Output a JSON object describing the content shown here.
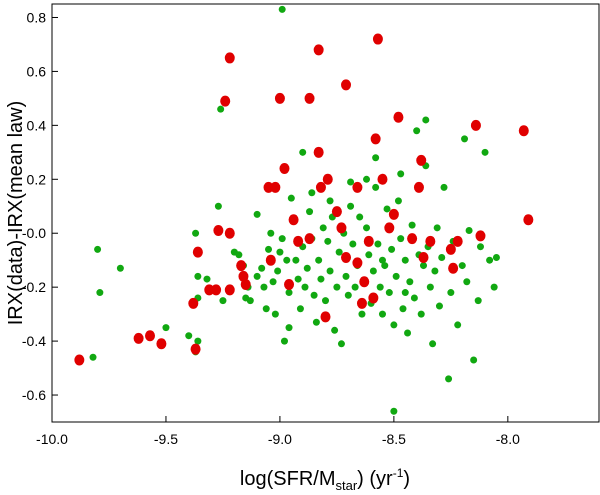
{
  "chart_data": {
    "type": "scatter",
    "title": "",
    "xlabel": {
      "main": "log(SFR/M",
      "sub": "star",
      "tail": ") (yr",
      "sup": "-1",
      "end": ")"
    },
    "ylabel": "IRX(data)-IRX(mean law)",
    "xlim": [
      -10.0,
      -7.6
    ],
    "ylim": [
      -0.7,
      0.85
    ],
    "xticks": [
      -10.0,
      -9.5,
      -9.0,
      -8.5,
      -8.0
    ],
    "xtick_labels": [
      "-10.0",
      "-9.5",
      "-9.0",
      "-8.5",
      "-8.0"
    ],
    "yticks": [
      -0.6,
      -0.4,
      -0.2,
      -0.0,
      0.2,
      0.4,
      0.6,
      0.8
    ],
    "ytick_labels": [
      "-0.6",
      "-0.4",
      "-0.2",
      "-0.0",
      "0.2",
      "0.4",
      "0.6",
      "0.8"
    ],
    "grid": false,
    "series": [
      {
        "name": "red",
        "color": "#e00000",
        "points": [
          [
            -9.88,
            -0.47
          ],
          [
            -9.62,
            -0.39
          ],
          [
            -9.57,
            -0.38
          ],
          [
            -9.52,
            -0.41
          ],
          [
            -9.37,
            -0.43
          ],
          [
            -9.38,
            -0.26
          ],
          [
            -9.31,
            -0.21
          ],
          [
            -9.28,
            -0.21
          ],
          [
            -9.22,
            -0.21
          ],
          [
            -9.36,
            -0.07
          ],
          [
            -9.27,
            0.01
          ],
          [
            -9.22,
            0.0
          ],
          [
            -9.24,
            0.49
          ],
          [
            -9.22,
            0.65
          ],
          [
            -9.0,
            0.5
          ],
          [
            -8.87,
            0.5
          ],
          [
            -8.83,
            0.68
          ],
          [
            -8.71,
            0.55
          ],
          [
            -8.57,
            0.72
          ],
          [
            -8.48,
            0.43
          ],
          [
            -8.58,
            0.35
          ],
          [
            -8.39,
            0.17
          ],
          [
            -8.38,
            0.27
          ],
          [
            -8.5,
            0.07
          ],
          [
            -8.52,
            0.02
          ],
          [
            -8.61,
            -0.03
          ],
          [
            -8.66,
            -0.11
          ],
          [
            -8.63,
            -0.18
          ],
          [
            -8.64,
            -0.26
          ],
          [
            -8.59,
            -0.24
          ],
          [
            -8.42,
            -0.02
          ],
          [
            -8.34,
            -0.03
          ],
          [
            -8.37,
            -0.09
          ],
          [
            -8.25,
            -0.06
          ],
          [
            -8.22,
            -0.03
          ],
          [
            -8.24,
            -0.13
          ],
          [
            -8.14,
            0.4
          ],
          [
            -8.12,
            -0.01
          ],
          [
            -7.93,
            0.38
          ],
          [
            -7.91,
            0.05
          ],
          [
            -9.17,
            -0.12
          ],
          [
            -9.16,
            -0.16
          ],
          [
            -9.15,
            -0.19
          ],
          [
            -9.05,
            0.17
          ],
          [
            -9.04,
            -0.1
          ],
          [
            -9.02,
            0.17
          ],
          [
            -8.98,
            0.24
          ],
          [
            -8.94,
            0.05
          ],
          [
            -8.92,
            -0.03
          ],
          [
            -8.87,
            -0.02
          ],
          [
            -8.83,
            0.3
          ],
          [
            -8.82,
            0.17
          ],
          [
            -8.79,
            0.2
          ],
          [
            -8.75,
            0.08
          ],
          [
            -8.73,
            0.02
          ],
          [
            -8.71,
            -0.09
          ],
          [
            -8.66,
            0.17
          ],
          [
            -8.8,
            -0.31
          ],
          [
            -8.96,
            -0.19
          ],
          [
            -8.55,
            0.2
          ]
        ]
      },
      {
        "name": "green",
        "color": "#11a811",
        "points": [
          [
            -9.82,
            -0.46
          ],
          [
            -9.8,
            -0.06
          ],
          [
            -9.79,
            -0.22
          ],
          [
            -9.7,
            -0.13
          ],
          [
            -9.5,
            -0.35
          ],
          [
            -9.37,
            -0.44
          ],
          [
            -9.36,
            -0.4
          ],
          [
            -9.4,
            -0.38
          ],
          [
            -9.36,
            -0.24
          ],
          [
            -9.37,
            0.0
          ],
          [
            -9.36,
            -0.16
          ],
          [
            -9.32,
            -0.17
          ],
          [
            -9.27,
            0.1
          ],
          [
            -9.26,
            0.46
          ],
          [
            -9.25,
            -0.25
          ],
          [
            -9.2,
            -0.07
          ],
          [
            -9.18,
            -0.08
          ],
          [
            -9.16,
            -0.12
          ],
          [
            -9.15,
            -0.24
          ],
          [
            -9.14,
            -0.2
          ],
          [
            -9.13,
            -0.25
          ],
          [
            -9.1,
            -0.16
          ],
          [
            -9.08,
            -0.13
          ],
          [
            -9.07,
            -0.2
          ],
          [
            -9.06,
            -0.28
          ],
          [
            -9.05,
            -0.06
          ],
          [
            -9.04,
            -0.0
          ],
          [
            -9.03,
            -0.18
          ],
          [
            -9.02,
            -0.3
          ],
          [
            -9.01,
            -0.14
          ],
          [
            -9.0,
            -0.07
          ],
          [
            -8.99,
            0.83
          ],
          [
            -8.99,
            -0.02
          ],
          [
            -8.98,
            -0.4
          ],
          [
            -8.97,
            -0.1
          ],
          [
            -8.96,
            -0.22
          ],
          [
            -8.95,
            0.13
          ],
          [
            -8.93,
            -0.1
          ],
          [
            -8.92,
            -0.17
          ],
          [
            -8.91,
            -0.28
          ],
          [
            -8.9,
            -0.05
          ],
          [
            -8.89,
            -0.2
          ],
          [
            -8.88,
            -0.13
          ],
          [
            -8.87,
            0.08
          ],
          [
            -8.86,
            -0.02
          ],
          [
            -8.85,
            -0.23
          ],
          [
            -8.84,
            -0.33
          ],
          [
            -8.83,
            -0.1
          ],
          [
            -8.82,
            -0.17
          ],
          [
            -8.81,
            0.02
          ],
          [
            -8.8,
            -0.25
          ],
          [
            -8.79,
            -0.03
          ],
          [
            -8.78,
            -0.14
          ],
          [
            -8.77,
            0.06
          ],
          [
            -8.76,
            -0.36
          ],
          [
            -8.75,
            -0.2
          ],
          [
            -8.74,
            -0.07
          ],
          [
            -8.73,
            -0.41
          ],
          [
            -8.72,
            0.0
          ],
          [
            -8.71,
            -0.16
          ],
          [
            -8.7,
            -0.23
          ],
          [
            -8.69,
            0.1
          ],
          [
            -8.68,
            -0.04
          ],
          [
            -8.67,
            -0.2
          ],
          [
            -8.66,
            -0.12
          ],
          [
            -8.65,
            0.06
          ],
          [
            -8.64,
            -0.3
          ],
          [
            -8.63,
            -0.18
          ],
          [
            -8.62,
            0.02
          ],
          [
            -8.61,
            -0.08
          ],
          [
            -8.6,
            -0.26
          ],
          [
            -8.59,
            -0.14
          ],
          [
            -8.58,
            0.17
          ],
          [
            -8.57,
            -0.04
          ],
          [
            -8.56,
            -0.2
          ],
          [
            -8.55,
            -0.3
          ],
          [
            -8.54,
            -0.12
          ],
          [
            -8.53,
            0.09
          ],
          [
            -8.52,
            -0.22
          ],
          [
            -8.51,
            -0.06
          ],
          [
            -8.5,
            -0.34
          ],
          [
            -8.49,
            -0.16
          ],
          [
            -8.48,
            0.12
          ],
          [
            -8.47,
            -0.02
          ],
          [
            -8.46,
            -0.28
          ],
          [
            -8.45,
            -0.1
          ],
          [
            -8.44,
            -0.37
          ],
          [
            -8.43,
            -0.18
          ],
          [
            -8.42,
            0.03
          ],
          [
            -8.41,
            -0.24
          ],
          [
            -8.4,
            0.38
          ],
          [
            -8.39,
            -0.08
          ],
          [
            -8.38,
            -0.3
          ],
          [
            -8.37,
            -0.12
          ],
          [
            -8.36,
            0.25
          ],
          [
            -8.35,
            -0.05
          ],
          [
            -8.34,
            -0.2
          ],
          [
            -8.33,
            -0.41
          ],
          [
            -8.32,
            -0.14
          ],
          [
            -8.31,
            0.02
          ],
          [
            -8.3,
            -0.27
          ],
          [
            -8.29,
            -0.09
          ],
          [
            -8.28,
            0.17
          ],
          [
            -8.26,
            -0.54
          ],
          [
            -8.25,
            -0.22
          ],
          [
            -8.24,
            -0.03
          ],
          [
            -8.22,
            -0.34
          ],
          [
            -8.2,
            -0.12
          ],
          [
            -8.19,
            0.35
          ],
          [
            -8.18,
            -0.18
          ],
          [
            -8.17,
            0.01
          ],
          [
            -8.15,
            -0.47
          ],
          [
            -8.13,
            -0.25
          ],
          [
            -8.12,
            -0.05
          ],
          [
            -8.1,
            0.3
          ],
          [
            -8.08,
            -0.1
          ],
          [
            -8.06,
            -0.2
          ],
          [
            -8.05,
            -0.09
          ],
          [
            -8.9,
            0.3
          ],
          [
            -8.78,
            0.12
          ],
          [
            -8.62,
            0.2
          ],
          [
            -8.47,
            0.22
          ],
          [
            -8.36,
            0.42
          ],
          [
            -8.58,
            0.28
          ],
          [
            -8.69,
            0.19
          ],
          [
            -8.86,
            0.15
          ],
          [
            -9.1,
            0.07
          ],
          [
            -8.96,
            -0.35
          ],
          [
            -8.5,
            -0.66
          ],
          [
            -8.45,
            -0.22
          ],
          [
            -8.55,
            -0.1
          ]
        ]
      }
    ]
  }
}
